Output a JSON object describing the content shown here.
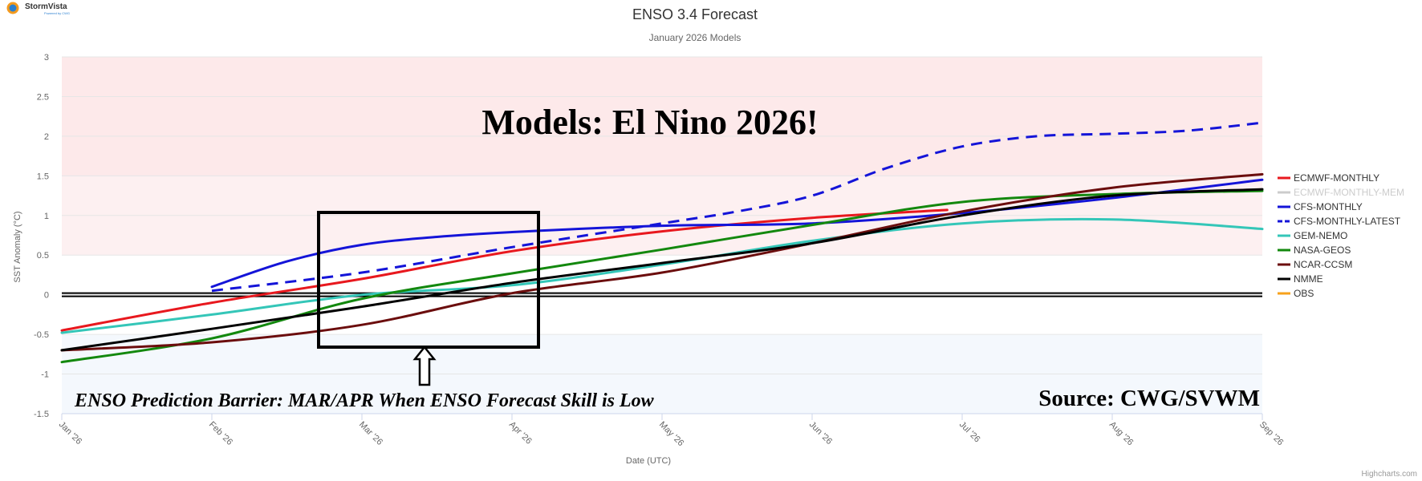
{
  "logo": {
    "name": "StormVista",
    "tagline": "Powered by CWG"
  },
  "credits": "Highcharts.com",
  "annotations": {
    "banner": "Models: El Nino 2026!",
    "barrier_note": "ENSO Prediction Barrier: MAR/APR When ENSO Forecast Skill is Low",
    "source": "Source: CWG/SVWM"
  },
  "colors": {
    "el_nino_band": "#fde9ea",
    "la_nina_band": "#f4f8fd",
    "grid": "#e6e6e6",
    "zero_line": "#000000"
  },
  "chart_data": {
    "type": "line",
    "title": "ENSO 3.4 Forecast",
    "subtitle": "January 2026 Models",
    "xlabel": "Date (UTC)",
    "ylabel": "SST Anomaly (°C)",
    "x_ticks": [
      "Jan '26",
      "Feb '26",
      "Mar '26",
      "Apr '26",
      "May '26",
      "Jun '26",
      "Jul '26",
      "Aug '26",
      "Sep '26"
    ],
    "xlim": [
      0,
      8
    ],
    "ylim": [
      -1.5,
      3
    ],
    "y_ticks": [
      3,
      2.5,
      2,
      1.5,
      1,
      0.5,
      0,
      -0.5,
      -1,
      -1.5
    ],
    "grid": true,
    "legend_position": "right",
    "bands": [
      {
        "from": 1.5,
        "to": 3,
        "color": "#fde9ea"
      },
      {
        "from": 0.5,
        "to": 1.5,
        "color": "#fdf0f1"
      },
      {
        "from": -1.5,
        "to": -0.5,
        "color": "#f4f8fd"
      }
    ],
    "series": [
      {
        "name": "ECMWF-MONTHLY",
        "color": "#e8181e",
        "dash": false,
        "hidden": false,
        "x": [
          0,
          1,
          2,
          3,
          4,
          5,
          5.9
        ],
        "y": [
          -0.45,
          -0.1,
          0.2,
          0.55,
          0.8,
          0.97,
          1.07
        ]
      },
      {
        "name": "ECMWF-MONTHLY-MEM",
        "color": "#cccccc",
        "dash": false,
        "hidden": true,
        "x": [],
        "y": []
      },
      {
        "name": "CFS-MONTHLY",
        "color": "#1414d8",
        "dash": false,
        "hidden": false,
        "x": [
          1,
          1.5,
          2,
          2.5,
          3,
          4,
          5,
          6,
          7,
          8
        ],
        "y": [
          0.1,
          0.42,
          0.63,
          0.73,
          0.79,
          0.87,
          0.9,
          1.03,
          1.22,
          1.45
        ]
      },
      {
        "name": "CFS-MONTHLY-LATEST",
        "color": "#1414d8",
        "dash": true,
        "hidden": false,
        "x": [
          1,
          2,
          3,
          4,
          4.5,
          5,
          5.5,
          6,
          6.5,
          7,
          7.5,
          8
        ],
        "y": [
          0.05,
          0.28,
          0.6,
          0.9,
          1.05,
          1.25,
          1.6,
          1.87,
          2.0,
          2.03,
          2.07,
          2.17
        ]
      },
      {
        "name": "GEM-NEMO",
        "color": "#34c6b8",
        "dash": false,
        "hidden": false,
        "x": [
          0,
          1,
          2,
          3,
          4,
          5,
          6,
          7,
          8
        ],
        "y": [
          -0.48,
          -0.25,
          0.0,
          0.12,
          0.38,
          0.68,
          0.9,
          0.95,
          0.83
        ]
      },
      {
        "name": "NASA-GEOS",
        "color": "#13880e",
        "dash": false,
        "hidden": false,
        "x": [
          0,
          1,
          2,
          3,
          4,
          5,
          6,
          7,
          8
        ],
        "y": [
          -0.85,
          -0.55,
          -0.05,
          0.27,
          0.57,
          0.88,
          1.17,
          1.27,
          1.31
        ]
      },
      {
        "name": "NCAR-CCSM",
        "color": "#6b0d0d",
        "dash": false,
        "hidden": false,
        "x": [
          0,
          1,
          2,
          3,
          4,
          5,
          6,
          7,
          8
        ],
        "y": [
          -0.7,
          -0.6,
          -0.38,
          0.02,
          0.28,
          0.65,
          1.05,
          1.35,
          1.52
        ]
      },
      {
        "name": "NMME",
        "color": "#000000",
        "dash": false,
        "hidden": false,
        "x": [
          0,
          1,
          2,
          3,
          4,
          5,
          6,
          7,
          8
        ],
        "y": [
          -0.7,
          -0.43,
          -0.15,
          0.15,
          0.4,
          0.65,
          1.0,
          1.25,
          1.33
        ]
      },
      {
        "name": "OBS",
        "color": "#f7a21b",
        "dash": false,
        "hidden": false,
        "x": [],
        "y": []
      }
    ]
  }
}
